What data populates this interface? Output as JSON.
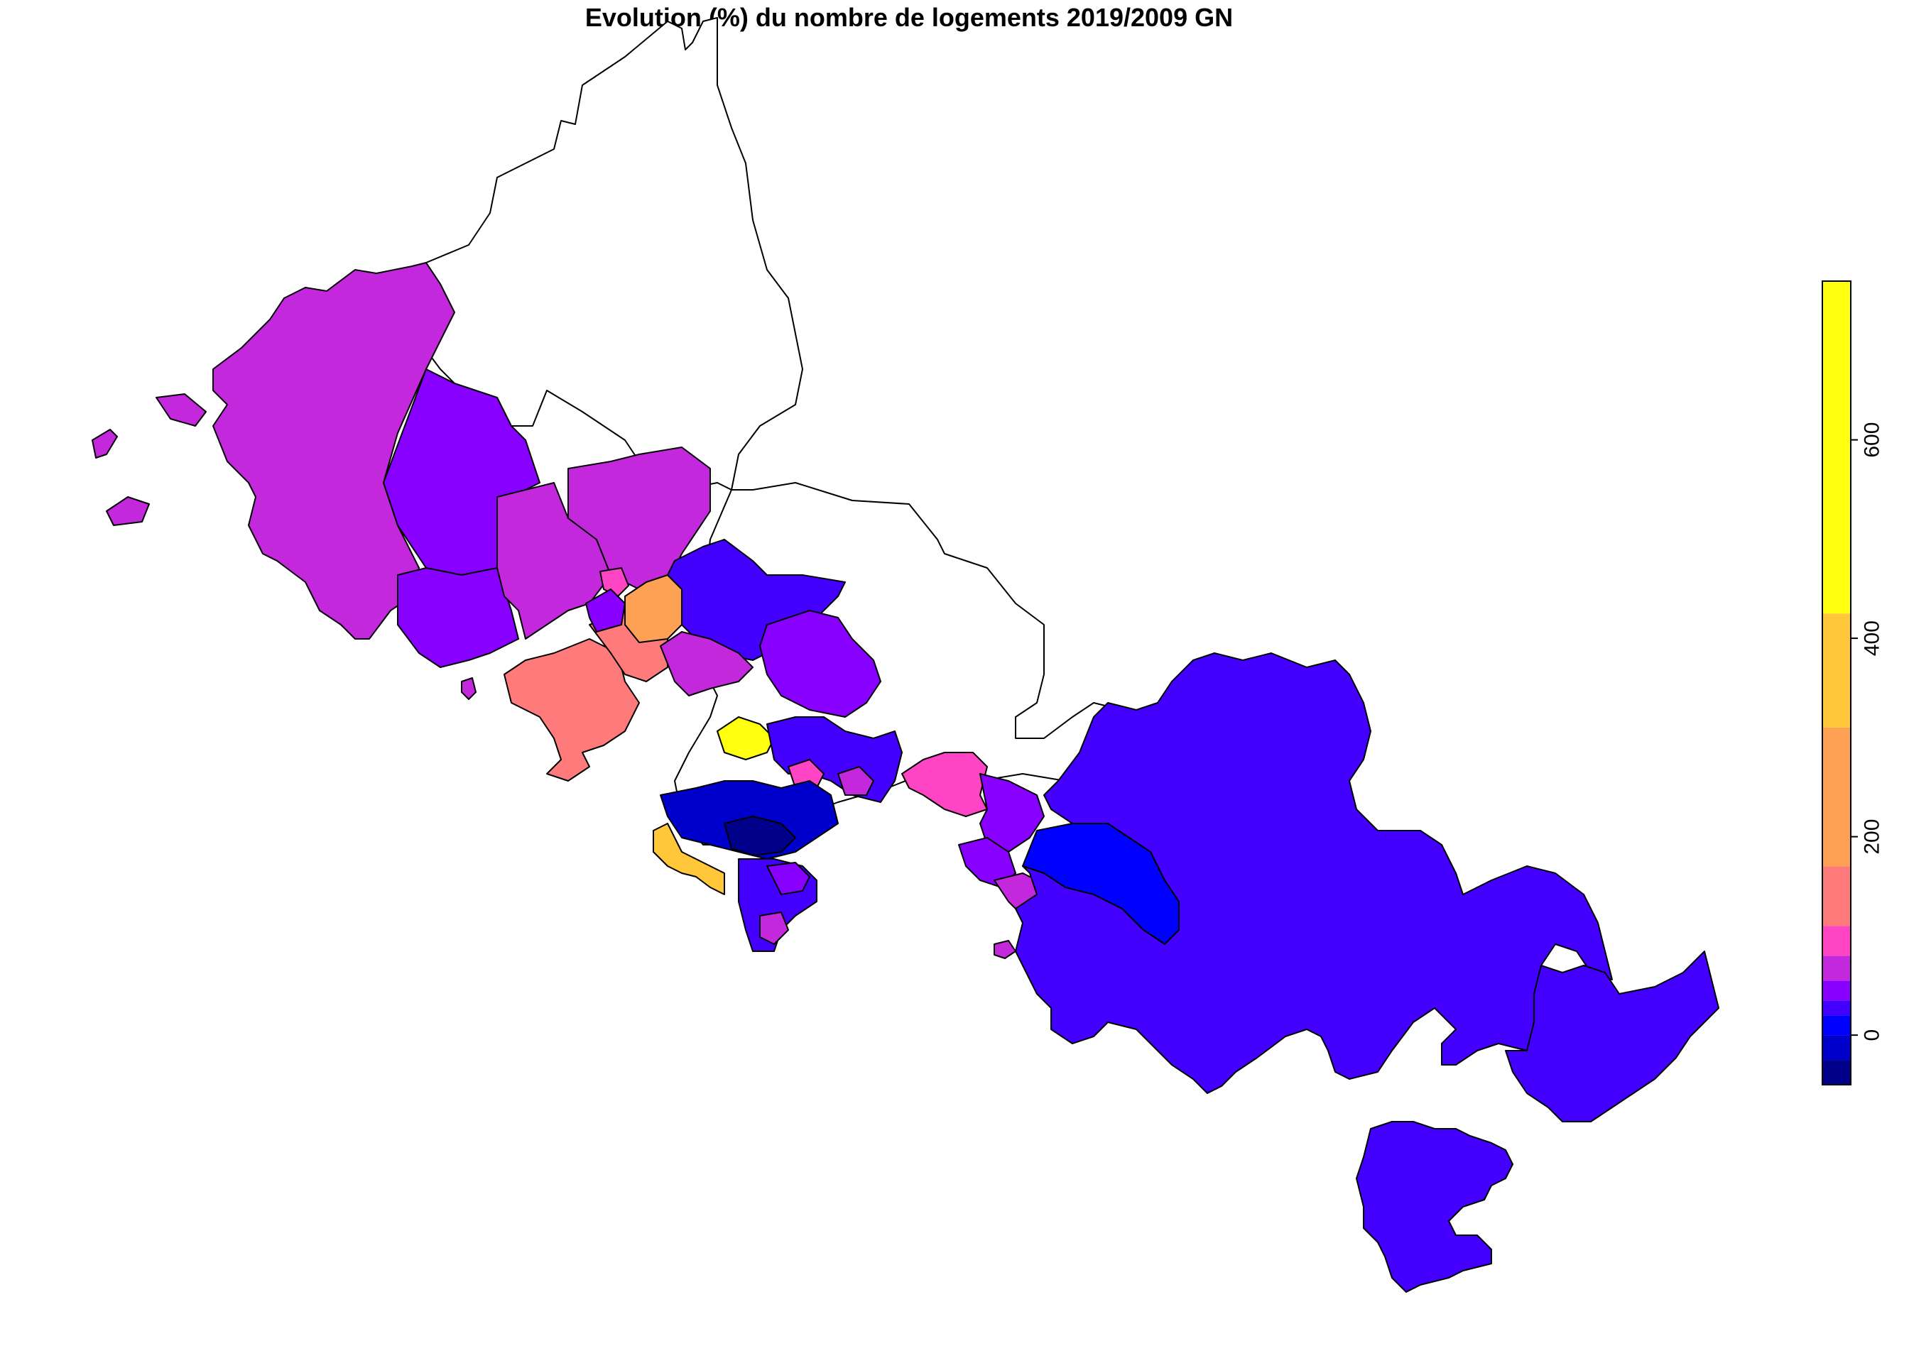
{
  "title": "Evolution (%) du nombre de logements 2019/2009 GN",
  "legend": {
    "type": "continuous-color-bar",
    "placement": "right",
    "orientation": "vertical",
    "min": -50,
    "max": 760,
    "ticks": [
      {
        "value": 0,
        "label": "0"
      },
      {
        "value": 200,
        "label": "200"
      },
      {
        "value": 400,
        "label": "400"
      },
      {
        "value": 600,
        "label": "600"
      }
    ],
    "bins": [
      {
        "from": -50,
        "to": -25,
        "color": "#00008B"
      },
      {
        "from": -25,
        "to": 0,
        "color": "#0000CD"
      },
      {
        "from": 0,
        "to": 20,
        "color": "#0000FF"
      },
      {
        "from": 20,
        "to": 35,
        "color": "#4400FF"
      },
      {
        "from": 35,
        "to": 55,
        "color": "#8800FF"
      },
      {
        "from": 55,
        "to": 80,
        "color": "#C428DC"
      },
      {
        "from": 80,
        "to": 110,
        "color": "#FF44C4"
      },
      {
        "from": 110,
        "to": 170,
        "color": "#FF7B7B"
      },
      {
        "from": 170,
        "to": 310,
        "color": "#FFA155"
      },
      {
        "from": 310,
        "to": 425,
        "color": "#FFC739"
      },
      {
        "from": 425,
        "to": 760,
        "color": "#FFFF0F"
      }
    ]
  },
  "no_data_color": "#FFFFFF",
  "regions": [
    {
      "id": "north-mountain",
      "fill": "#FFFFFF"
    },
    {
      "id": "central-east-mountain",
      "fill": "#FFFFFF"
    },
    {
      "id": "west-peninsula",
      "fill": "#C428DC"
    },
    {
      "id": "west-islet-1",
      "fill": "#C428DC"
    },
    {
      "id": "west-islet-2",
      "fill": "#C428DC"
    },
    {
      "id": "west-islet-3",
      "fill": "#C428DC"
    },
    {
      "id": "west-central",
      "fill": "#8800FF"
    },
    {
      "id": "west-south",
      "fill": "#8800FF"
    },
    {
      "id": "central-north-a",
      "fill": "#C428DC"
    },
    {
      "id": "central-north-b",
      "fill": "#C428DC"
    },
    {
      "id": "central-south-peninsula",
      "fill": "#FF7B7B"
    },
    {
      "id": "central-bay-coast",
      "fill": "#FF7B7B"
    },
    {
      "id": "central-small-pink",
      "fill": "#FF44C4"
    },
    {
      "id": "central-small-violet",
      "fill": "#8800FF"
    },
    {
      "id": "central-orange",
      "fill": "#FFA155"
    },
    {
      "id": "central-north-blue",
      "fill": "#4400FF"
    },
    {
      "id": "central-bay-magenta",
      "fill": "#C428DC"
    },
    {
      "id": "central-east-violet",
      "fill": "#8800FF"
    },
    {
      "id": "central-yellow-islet",
      "fill": "#FFFF0F"
    },
    {
      "id": "urban-north-cluster",
      "fill": "#4400FF"
    },
    {
      "id": "urban-pink-a",
      "fill": "#FF44C4"
    },
    {
      "id": "urban-magenta-b",
      "fill": "#C428DC"
    },
    {
      "id": "urban-core-dark",
      "fill": "#0000CD"
    },
    {
      "id": "urban-core-navy",
      "fill": "#00008B"
    },
    {
      "id": "urban-south",
      "fill": "#4400FF"
    },
    {
      "id": "urban-south-violet",
      "fill": "#8800FF"
    },
    {
      "id": "urban-south-magenta",
      "fill": "#C428DC"
    },
    {
      "id": "gold-islet",
      "fill": "#FFC739"
    },
    {
      "id": "east-pink",
      "fill": "#FF44C4"
    },
    {
      "id": "east-violet-a",
      "fill": "#8800FF"
    },
    {
      "id": "east-violet-b",
      "fill": "#8800FF"
    },
    {
      "id": "east-magenta-coast",
      "fill": "#C428DC"
    },
    {
      "id": "east-blue",
      "fill": "#0000FF"
    },
    {
      "id": "east-large",
      "fill": "#4400FF"
    },
    {
      "id": "far-east-peninsula",
      "fill": "#4400FF"
    },
    {
      "id": "south-island",
      "fill": "#4400FF"
    },
    {
      "id": "small-islet-pink",
      "fill": "#C428DC"
    },
    {
      "id": "small-islet-south",
      "fill": "#C428DC"
    }
  ]
}
